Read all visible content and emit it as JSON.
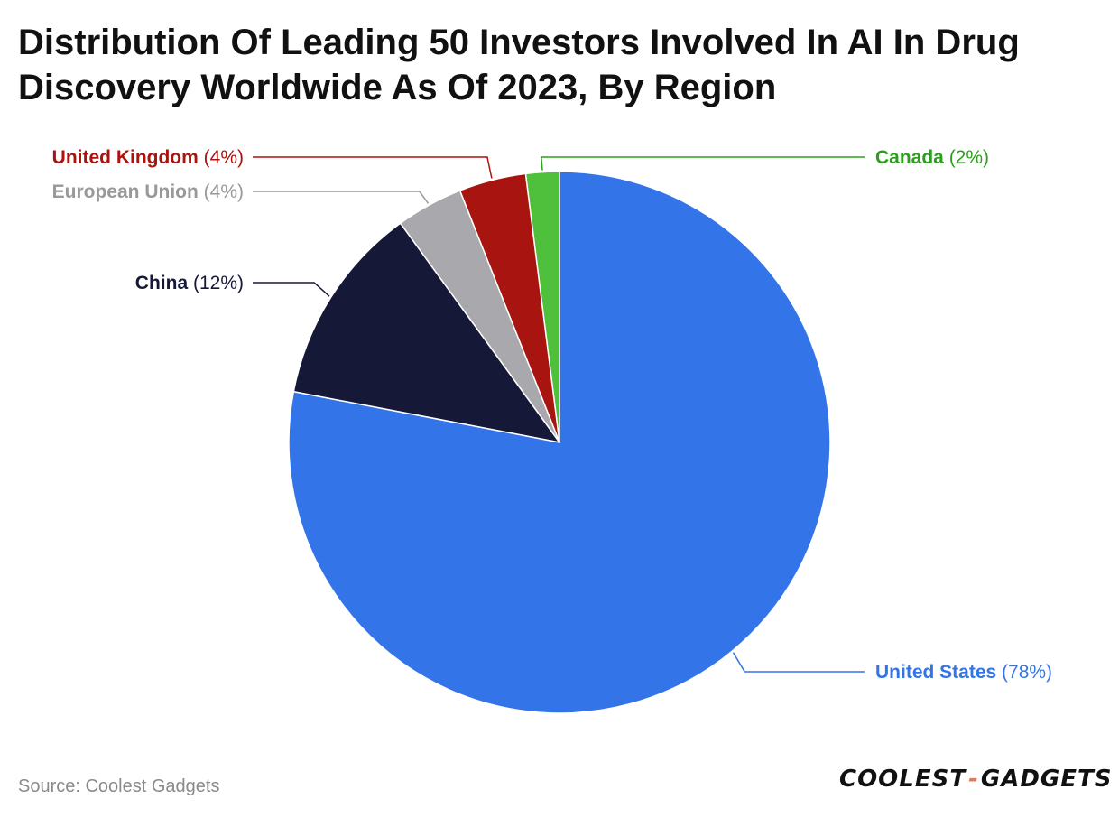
{
  "title": "Distribution Of Leading 50 Investors Involved In AI In Drug Discovery Worldwide As Of 2023, By Region",
  "source": "Source: Coolest Gadgets",
  "logo": {
    "left": "COOLEST",
    "dash": "-",
    "right": "GADGETS"
  },
  "chart_data": {
    "type": "pie",
    "title": "Distribution Of Leading 50 Investors Involved In AI In Drug Discovery Worldwide As Of 2023, By Region",
    "start_angle_deg": 0,
    "direction": "counterclockwise-from-top",
    "label_format": "name (value%)",
    "slices": [
      {
        "name": "Canada",
        "value": 2,
        "pct_label": "(2%)",
        "color": "#4fc03b",
        "label_color": "#2e9e1e",
        "label_side": "right",
        "label_row": "top"
      },
      {
        "name": "United Kingdom",
        "value": 4,
        "pct_label": "(4%)",
        "color": "#a8140f",
        "label_color": "#a8140f",
        "label_side": "left",
        "label_row": "top"
      },
      {
        "name": "European Union",
        "value": 4,
        "pct_label": "(4%)",
        "color": "#a9a9ad",
        "label_color": "#999999",
        "label_side": "left",
        "label_row": "second"
      },
      {
        "name": "China",
        "value": 12,
        "pct_label": "(12%)",
        "color": "#161838",
        "label_color": "#161838",
        "label_side": "left",
        "label_row": "middle"
      },
      {
        "name": "United States",
        "value": 78,
        "pct_label": "(78%)",
        "color": "#3375e8",
        "label_color": "#3375e8",
        "label_side": "right",
        "label_row": "bottom"
      }
    ]
  }
}
